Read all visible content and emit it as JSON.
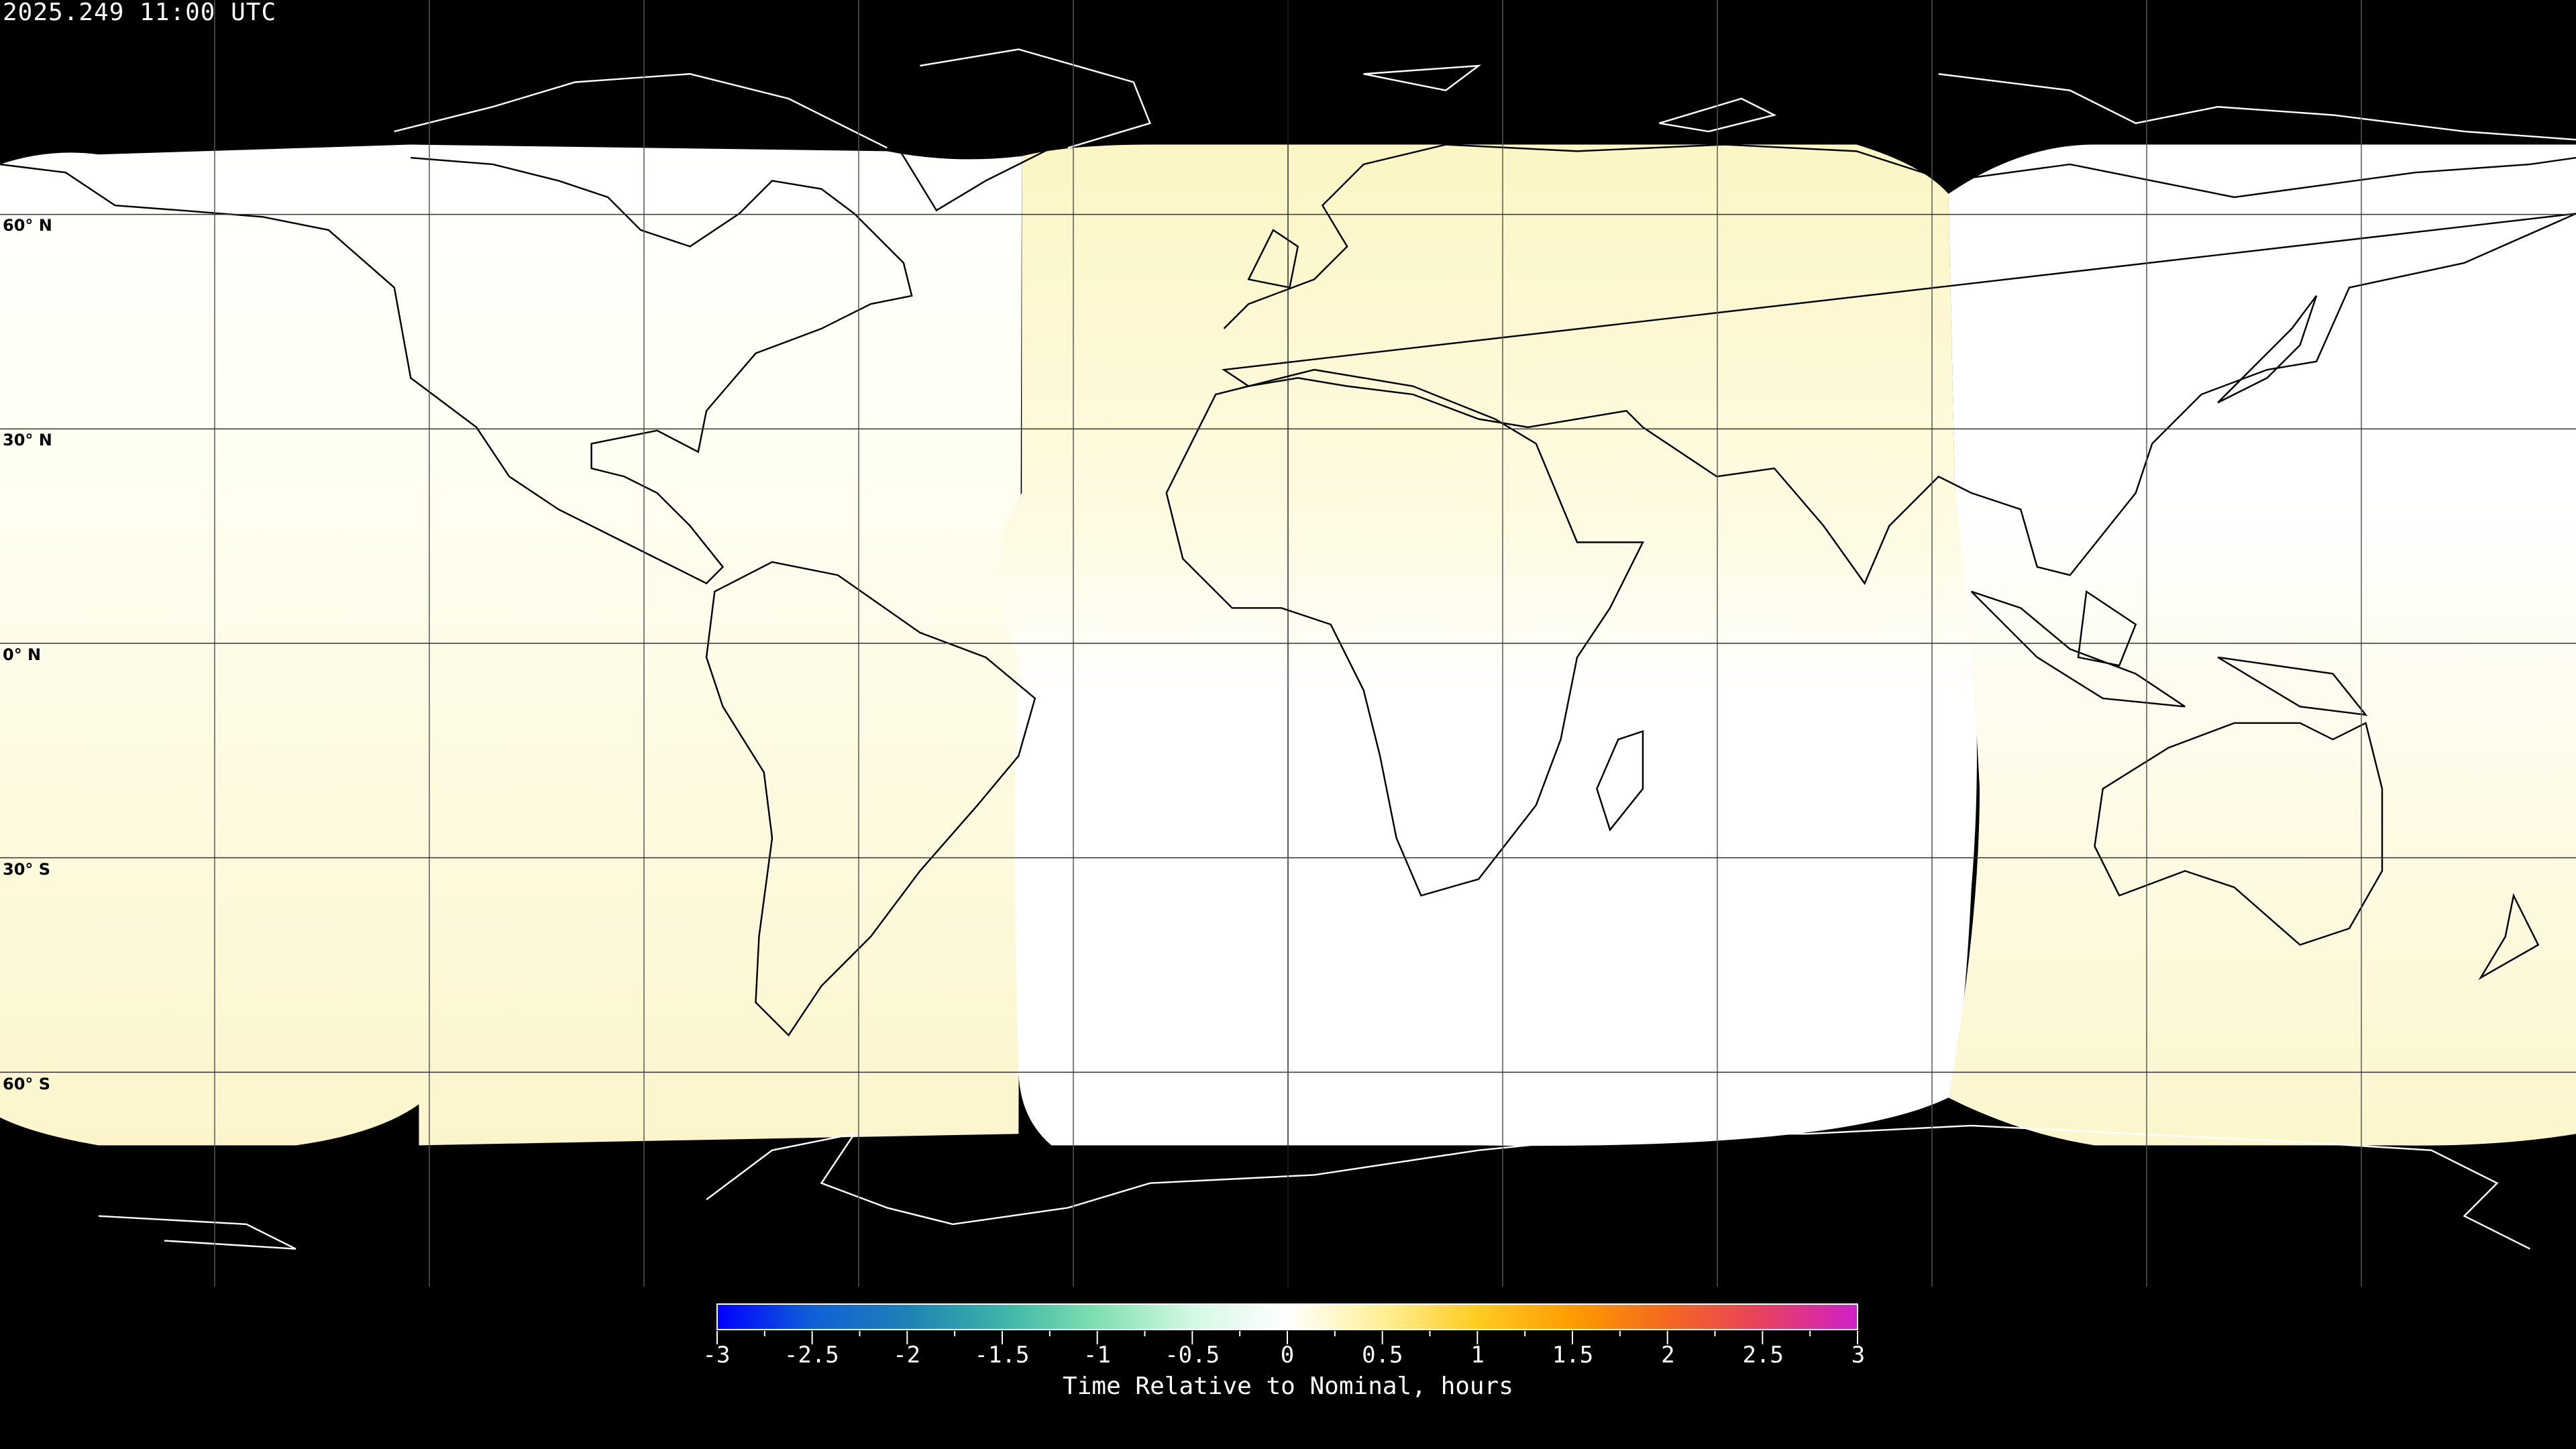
{
  "title": "2025.249 11:00 UTC",
  "latitude_labels": [
    "60° N",
    "30° N",
    "0° N",
    "30° S",
    "60° S"
  ],
  "grid": {
    "longitude_step_deg": 30,
    "latitude_step_deg": 30
  },
  "colorbar": {
    "label": "Time Relative to Nominal, hours",
    "ticks": [
      "-3",
      "-2.5",
      "-2",
      "-1.5",
      "-1",
      "-0.5",
      "0",
      "0.5",
      "1",
      "1.5",
      "2",
      "2.5",
      "3"
    ],
    "range": [
      -3,
      3
    ],
    "colors": [
      "#0000ff",
      "#1060d8",
      "#1e82b4",
      "#3cb4a8",
      "#80e0b0",
      "#d4f8e4",
      "#ffffff",
      "#fff096",
      "#ffcc20",
      "#ff9c00",
      "#f46820",
      "#e84060",
      "#d020c8"
    ]
  },
  "colors": {
    "background": "#000000",
    "coastline": "#000000",
    "no_data": "#000000"
  }
}
